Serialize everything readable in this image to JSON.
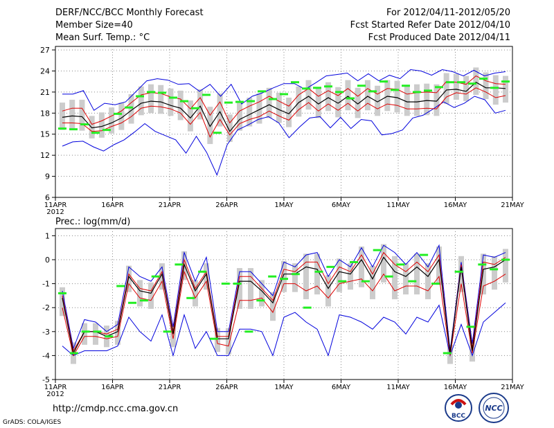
{
  "header": {
    "title": "DERF/NCC/BCC Monthly Forecast",
    "member_size": "Member Size=40",
    "variable": "Mean Surf. Temp.: °C",
    "forecast_range": "For 2012/04/11-2012/05/20",
    "started_refer": "Fcst Started Refer Date 2012/04/10",
    "produced": "Fcst Produced Date 2012/04/11"
  },
  "footer": {
    "url": "http://cmdp.ncc.cma.gov.cn",
    "grads": "GrADS: COLA/IGES"
  },
  "logos": {
    "bcc": "BCC",
    "ncc": "NCC"
  },
  "colors": {
    "envelope": "#0000dd",
    "spread": "#dd0000",
    "mean": "#000000",
    "box": "#cccccc",
    "marker": "#22ee22",
    "grid": "#888888"
  },
  "chart_data": [
    {
      "type": "line",
      "title": "Mean Surf. Temp.: °C",
      "ylim": [
        6,
        27.5
      ],
      "yticks": [
        6,
        9,
        12,
        15,
        18,
        21,
        24,
        27
      ],
      "xlim": [
        0,
        40
      ],
      "xtick_positions": [
        0,
        5,
        10,
        15,
        20,
        25,
        30,
        35,
        40
      ],
      "xtick_labels": [
        "11APR",
        "16APR",
        "21APR",
        "26APR",
        "1MAY",
        "6MAY",
        "11MAY",
        "16MAY",
        "21MAY"
      ],
      "xtick_sublabel": "2012",
      "days": 39,
      "series": [
        {
          "name": "max",
          "values": [
            20.7,
            20.7,
            21.2,
            18.4,
            19.4,
            19.2,
            19.6,
            21.1,
            22.6,
            22.9,
            22.7,
            22.1,
            22.2,
            21.1,
            22.1,
            20.4,
            22.1,
            19.3,
            20.4,
            20.9,
            21.6,
            22.2,
            22.2,
            21.4,
            22.3,
            23.3,
            23.5,
            23.7,
            22.6,
            23.6,
            22.6,
            23.4,
            22.9,
            24.2,
            24.0,
            23.4,
            24.2,
            23.9,
            23.3,
            24.1,
            23.3,
            23.7,
            23.9
          ]
        },
        {
          "name": "upper",
          "values": [
            18.3,
            18.7,
            18.7,
            16.4,
            16.9,
            17.6,
            18.3,
            19.5,
            20.6,
            20.9,
            20.8,
            20.3,
            20.0,
            18.6,
            20.2,
            17.7,
            19.6,
            16.6,
            18.3,
            19.0,
            19.6,
            20.4,
            19.7,
            19.0,
            20.6,
            21.5,
            20.4,
            21.2,
            20.5,
            21.5,
            20.4,
            21.5,
            20.7,
            21.5,
            21.4,
            20.7,
            20.9,
            21.0,
            20.9,
            22.5,
            22.4,
            22.1,
            23.3,
            22.6,
            22.2,
            22.1
          ]
        },
        {
          "name": "mean",
          "values": [
            17.4,
            17.6,
            17.5,
            15.9,
            16.1,
            16.6,
            17.3,
            18.4,
            19.4,
            19.7,
            19.6,
            19.1,
            18.7,
            17.3,
            19.0,
            16.1,
            18.2,
            15.4,
            17.1,
            17.8,
            18.5,
            19.2,
            18.5,
            17.9,
            19.5,
            20.4,
            19.3,
            20.2,
            19.4,
            20.4,
            19.3,
            20.4,
            19.6,
            20.4,
            20.2,
            19.6,
            19.6,
            19.8,
            19.7,
            21.3,
            21.4,
            21.1,
            22.4,
            21.6,
            21.6,
            21.5
          ]
        },
        {
          "name": "lower",
          "values": [
            16.6,
            16.6,
            16.5,
            15.4,
            15.5,
            16.1,
            16.6,
            17.5,
            18.7,
            19.0,
            18.9,
            18.6,
            18.0,
            16.4,
            18.1,
            14.6,
            17.1,
            14.9,
            16.5,
            17.1,
            17.5,
            18.3,
            17.6,
            17.0,
            18.5,
            19.5,
            18.3,
            19.3,
            18.4,
            19.4,
            18.3,
            19.4,
            18.6,
            19.3,
            19.1,
            18.6,
            18.6,
            18.7,
            18.6,
            20.3,
            20.9,
            20.7,
            21.6,
            21.0,
            20.2,
            20.5
          ]
        },
        {
          "name": "min",
          "values": [
            13.3,
            13.9,
            14.0,
            13.2,
            12.6,
            13.5,
            14.2,
            15.3,
            16.5,
            15.4,
            14.8,
            14.2,
            12.3,
            14.7,
            12.4,
            9.2,
            13.5,
            15.6,
            16.3,
            17.1,
            17.5,
            16.6,
            14.5,
            16.0,
            17.3,
            17.5,
            15.9,
            17.4,
            15.8,
            17.1,
            16.9,
            14.9,
            15.1,
            15.6,
            17.3,
            17.7,
            18.6,
            19.6,
            18.8,
            19.4,
            20.4,
            19.9,
            18.0,
            18.4
          ]
        },
        {
          "name": "ensemble-marker",
          "values": [
            15.8,
            15.7,
            16.4,
            15.2,
            15.6,
            17.9,
            18.8,
            20.4,
            21.0,
            20.9,
            20.2,
            19.7,
            18.7,
            20.6,
            15.2,
            19.5,
            19.6,
            19.7,
            21.1,
            20.0,
            20.7,
            22.4,
            21.5,
            21.6,
            21.8,
            21.0,
            20.1,
            21.9,
            21.1,
            22.5,
            21.3,
            21.9,
            21.0,
            21.2,
            21.7,
            22.4,
            22.4,
            22.2,
            22.9,
            21.6,
            22.5
          ]
        }
      ]
    },
    {
      "type": "line",
      "title": "Prec.: log(mm/d)",
      "ylim": [
        -5,
        1.3
      ],
      "yticks": [
        -5,
        -4,
        -3,
        -2,
        -1,
        0,
        1
      ],
      "xlim": [
        0,
        40
      ],
      "xtick_positions": [
        0,
        5,
        10,
        15,
        20,
        25,
        30,
        35,
        40
      ],
      "xtick_labels": [
        "11APR",
        "16APR",
        "21APR",
        "26APR",
        "1MAY",
        "6MAY",
        "11MAY",
        "16MAY",
        "21MAY"
      ],
      "xtick_sublabel": "2012",
      "series": [
        {
          "name": "max",
          "values": [
            -1.3,
            -3.7,
            -2.5,
            -2.6,
            -3.0,
            -2.7,
            -0.3,
            -0.7,
            -0.9,
            -0.3,
            -2.8,
            0.3,
            -0.9,
            0.1,
            -3.0,
            -3.0,
            -0.5,
            -0.5,
            -1.0,
            -1.5,
            -0.1,
            -0.3,
            0.2,
            0.3,
            -0.7,
            0.0,
            -0.3,
            0.5,
            -0.3,
            0.6,
            0.3,
            -0.2,
            0.3,
            -0.3,
            0.6,
            -3.8,
            -0.1,
            -3.5,
            0.2,
            0.1,
            0.3
          ]
        },
        {
          "name": "upper",
          "values": [
            -1.5,
            -3.8,
            -3.0,
            -3.0,
            -3.1,
            -2.9,
            -0.6,
            -1.2,
            -1.3,
            -0.5,
            -3.0,
            0.0,
            -1.2,
            -0.5,
            -3.2,
            -3.2,
            -0.7,
            -0.7,
            -1.2,
            -1.7,
            -0.4,
            -0.5,
            -0.1,
            -0.1,
            -1.0,
            -0.3,
            -0.5,
            0.2,
            -0.6,
            0.3,
            -0.2,
            -0.5,
            -0.1,
            -0.5,
            0.2,
            -3.9,
            -0.2,
            -3.7,
            -0.1,
            -0.2,
            0.1
          ]
        },
        {
          "name": "mean",
          "values": [
            -1.6,
            -3.9,
            -3.0,
            -3.0,
            -3.2,
            -3.0,
            -0.7,
            -1.3,
            -1.4,
            -0.6,
            -3.1,
            -0.2,
            -1.3,
            -0.6,
            -3.3,
            -3.3,
            -0.9,
            -0.9,
            -1.3,
            -1.8,
            -0.6,
            -0.6,
            -0.3,
            -0.4,
            -1.2,
            -0.5,
            -0.6,
            0.0,
            -0.8,
            0.1,
            -0.5,
            -0.7,
            -0.3,
            -0.7,
            0.0,
            -3.9,
            -0.3,
            -3.8,
            -0.4,
            -0.3,
            0.0
          ]
        },
        {
          "name": "lower",
          "values": [
            -2.0,
            -4.0,
            -3.2,
            -3.2,
            -3.3,
            -3.2,
            -1.0,
            -1.6,
            -1.7,
            -0.9,
            -3.3,
            -0.5,
            -1.6,
            -0.9,
            -3.5,
            -3.6,
            -1.7,
            -1.7,
            -1.6,
            -2.2,
            -1.0,
            -1.0,
            -1.3,
            -1.1,
            -1.6,
            -1.0,
            -0.9,
            -0.8,
            -1.3,
            -0.6,
            -1.3,
            -1.1,
            -1.1,
            -1.3,
            -0.7,
            -4.0,
            -1.0,
            -3.9,
            -1.1,
            -0.9,
            -0.6
          ]
        },
        {
          "name": "min",
          "values": [
            -3.6,
            -4.0,
            -3.8,
            -3.8,
            -3.8,
            -3.6,
            -2.4,
            -3.0,
            -3.4,
            -2.3,
            -4.0,
            -2.3,
            -3.7,
            -3.0,
            -4.0,
            -4.0,
            -2.9,
            -2.9,
            -3.0,
            -4.0,
            -2.4,
            -2.2,
            -2.6,
            -2.9,
            -4.0,
            -2.3,
            -2.4,
            -2.6,
            -2.9,
            -2.4,
            -2.6,
            -3.1,
            -2.4,
            -2.6,
            -1.9,
            -4.0,
            -2.7,
            -4.0,
            -2.6,
            -2.2,
            -1.8
          ]
        },
        {
          "name": "ensemble-marker",
          "values": [
            -1.4,
            -3.9,
            -3.0,
            -3.0,
            -3.2,
            -1.1,
            -1.8,
            -1.7,
            -0.7,
            -3.0,
            -0.2,
            -1.6,
            -0.5,
            -3.3,
            -1.0,
            -1.0,
            -3.0,
            -1.7,
            -0.7,
            -0.8,
            -0.6,
            -2.0,
            -0.5,
            -0.3,
            -0.9,
            -0.1,
            -0.9,
            0.4,
            -0.7,
            -0.2,
            -0.9,
            0.2,
            -1.0,
            -3.9,
            -0.5,
            -2.8,
            -0.2,
            -0.4,
            0.0
          ]
        }
      ]
    }
  ]
}
